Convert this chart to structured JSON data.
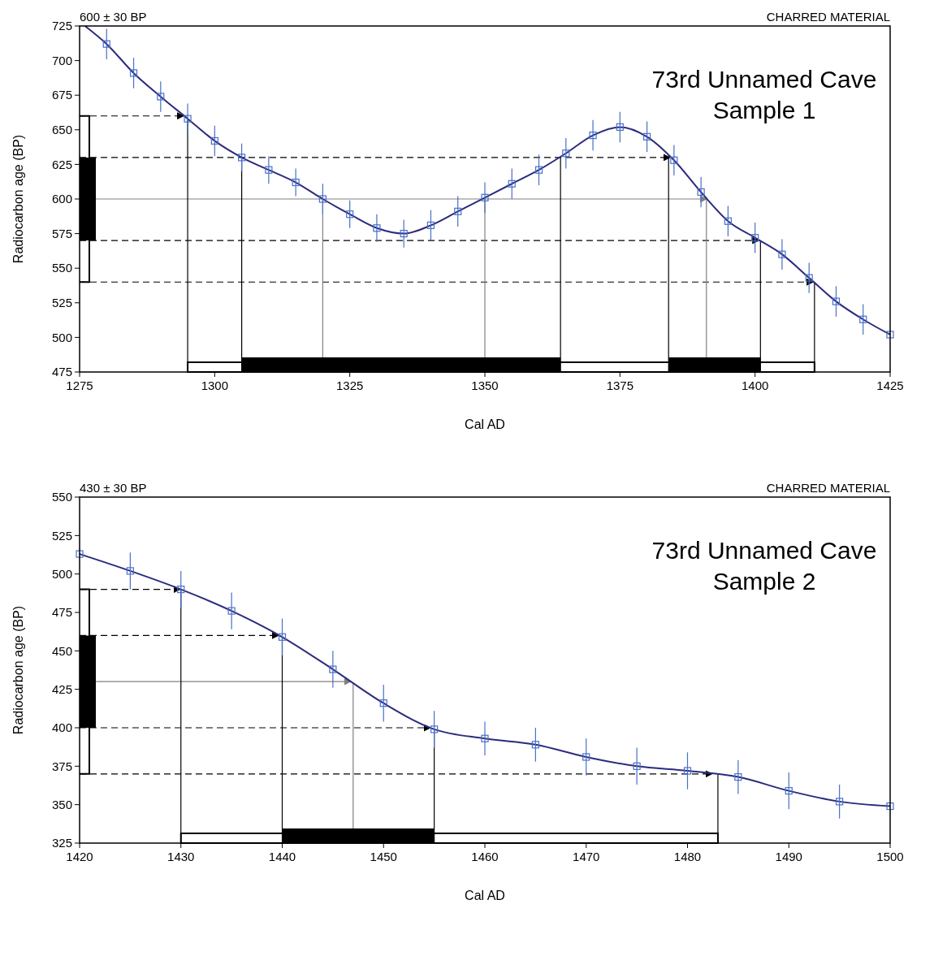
{
  "chart_data": [
    {
      "type": "line",
      "title": "73rd Unnamed Cave",
      "subtitle": "Sample 1",
      "xlabel": "Cal AD",
      "ylabel": "Radiocarbon age (BP)",
      "annotations": [
        "600 ± 30 BP",
        "CHARRED MATERIAL"
      ],
      "xlim": [
        1275,
        1425
      ],
      "xticks": [
        1275,
        1300,
        1325,
        1350,
        1375,
        1400,
        1425
      ],
      "ylim": [
        475,
        725
      ],
      "yticks": [
        475,
        500,
        525,
        550,
        575,
        600,
        625,
        650,
        675,
        700,
        725
      ],
      "grid": false,
      "series": [
        {
          "color": "#2b2b7e",
          "marker": "none",
          "x": [
            1276,
            1280,
            1285,
            1290,
            1295,
            1300,
            1305,
            1310,
            1315,
            1320,
            1325,
            1330,
            1335,
            1340,
            1345,
            1350,
            1355,
            1360,
            1365,
            1370,
            1375,
            1380,
            1385,
            1390,
            1395,
            1400,
            1405,
            1410,
            1415,
            1420,
            1425
          ],
          "values": [
            725,
            712,
            691,
            674,
            658,
            642,
            630,
            621,
            612,
            600,
            589,
            579,
            575,
            581,
            591,
            601,
            611,
            621,
            633,
            646,
            652,
            645,
            628,
            605,
            584,
            572,
            560,
            543,
            526,
            513,
            502
          ]
        },
        {
          "type": "scatter",
          "color": "#4a6fc8",
          "marker": "square",
          "x": [
            1280,
            1285,
            1290,
            1295,
            1300,
            1305,
            1310,
            1315,
            1320,
            1325,
            1330,
            1335,
            1340,
            1345,
            1350,
            1355,
            1360,
            1365,
            1370,
            1375,
            1380,
            1385,
            1390,
            1395,
            1400,
            1405,
            1410,
            1415,
            1420,
            1425
          ],
          "values": [
            712,
            691,
            674,
            658,
            642,
            630,
            621,
            612,
            600,
            589,
            579,
            575,
            581,
            591,
            601,
            611,
            621,
            633,
            646,
            652,
            645,
            628,
            605,
            584,
            572,
            560,
            543,
            526,
            513,
            502
          ],
          "errors": [
            11,
            11,
            11,
            11,
            11,
            10,
            10,
            10,
            11,
            10,
            10,
            10,
            11,
            11,
            11,
            11,
            11,
            11,
            11,
            11,
            11,
            11,
            11,
            11,
            11,
            11,
            11,
            11,
            11,
            null
          ]
        }
      ],
      "ref_lines": [
        {
          "axis": "y",
          "value": 660,
          "color": "#000000",
          "line_style": "dashed"
        },
        {
          "axis": "y",
          "value": 630,
          "color": "#000000",
          "line_style": "dashed"
        },
        {
          "axis": "y",
          "value": 600,
          "color": "#808080",
          "line_style": "solid"
        },
        {
          "axis": "y",
          "value": 570,
          "color": "#000000",
          "line_style": "dashed"
        },
        {
          "axis": "y",
          "value": 540,
          "color": "#000000",
          "line_style": "dashed"
        },
        {
          "axis": "x",
          "value": 1295,
          "color": "#000000",
          "line_style": "solid"
        },
        {
          "axis": "x",
          "value": 1305,
          "color": "#000000",
          "line_style": "solid"
        },
        {
          "axis": "x",
          "value": 1320,
          "color": "#808080",
          "line_style": "solid"
        },
        {
          "axis": "x",
          "value": 1350,
          "color": "#808080",
          "line_style": "solid"
        },
        {
          "axis": "x",
          "value": 1364,
          "color": "#000000",
          "line_style": "solid"
        },
        {
          "axis": "x",
          "value": 1384,
          "color": "#000000",
          "line_style": "solid"
        },
        {
          "axis": "x",
          "value": 1391,
          "color": "#808080",
          "line_style": "solid"
        },
        {
          "axis": "x",
          "value": 1401,
          "color": "#000000",
          "line_style": "solid"
        },
        {
          "axis": "x",
          "value": 1411,
          "color": "#000000",
          "line_style": "solid"
        }
      ],
      "bands": [
        {
          "axis": "x",
          "from": 1305,
          "to": 1364,
          "color": "#000000"
        },
        {
          "axis": "x",
          "from": 1384,
          "to": 1401,
          "color": "#000000"
        }
      ]
    },
    {
      "type": "line",
      "title": "73rd Unnamed Cave",
      "subtitle": "Sample 2",
      "xlabel": "Cal AD",
      "ylabel": "Radiocarbon age (BP)",
      "annotations": [
        "430 ± 30 BP",
        "CHARRED MATERIAL"
      ],
      "xlim": [
        1420,
        1500
      ],
      "xticks": [
        1420,
        1430,
        1440,
        1450,
        1460,
        1470,
        1480,
        1490,
        1500
      ],
      "ylim": [
        325,
        550
      ],
      "yticks": [
        325,
        350,
        375,
        400,
        425,
        450,
        475,
        500,
        525,
        550
      ],
      "grid": false,
      "series": [
        {
          "color": "#2b2b7e",
          "marker": "none",
          "x": [
            1420,
            1425,
            1430,
            1435,
            1440,
            1445,
            1450,
            1455,
            1460,
            1465,
            1470,
            1475,
            1480,
            1485,
            1490,
            1495,
            1500
          ],
          "values": [
            513,
            502,
            490,
            476,
            459,
            438,
            416,
            399,
            393,
            389,
            381,
            375,
            372,
            368,
            359,
            352,
            349
          ]
        },
        {
          "type": "scatter",
          "color": "#4a6fc8",
          "marker": "square",
          "x": [
            1420,
            1425,
            1430,
            1435,
            1440,
            1445,
            1450,
            1455,
            1460,
            1465,
            1470,
            1475,
            1480,
            1485,
            1490,
            1495,
            1500
          ],
          "values": [
            513,
            502,
            490,
            476,
            459,
            438,
            416,
            399,
            393,
            389,
            381,
            375,
            372,
            368,
            359,
            352,
            349
          ],
          "errors": [
            null,
            12,
            12,
            12,
            12,
            12,
            12,
            12,
            11,
            11,
            12,
            12,
            12,
            11,
            12,
            11,
            null
          ]
        }
      ],
      "ref_lines": [
        {
          "axis": "y",
          "value": 490,
          "color": "#000000",
          "line_style": "dashed"
        },
        {
          "axis": "y",
          "value": 460,
          "color": "#000000",
          "line_style": "dashed"
        },
        {
          "axis": "y",
          "value": 430,
          "color": "#808080",
          "line_style": "solid"
        },
        {
          "axis": "y",
          "value": 400,
          "color": "#000000",
          "line_style": "dashed"
        },
        {
          "axis": "y",
          "value": 370,
          "color": "#000000",
          "line_style": "dashed"
        },
        {
          "axis": "x",
          "value": 1430,
          "color": "#000000",
          "line_style": "solid"
        },
        {
          "axis": "x",
          "value": 1440,
          "color": "#000000",
          "line_style": "solid"
        },
        {
          "axis": "x",
          "value": 1447,
          "color": "#808080",
          "line_style": "solid"
        },
        {
          "axis": "x",
          "value": 1455,
          "color": "#000000",
          "line_style": "solid"
        },
        {
          "axis": "x",
          "value": 1483,
          "color": "#000000",
          "line_style": "solid"
        }
      ],
      "bands": [
        {
          "axis": "x",
          "from": 1440,
          "to": 1455,
          "color": "#000000"
        }
      ]
    }
  ]
}
